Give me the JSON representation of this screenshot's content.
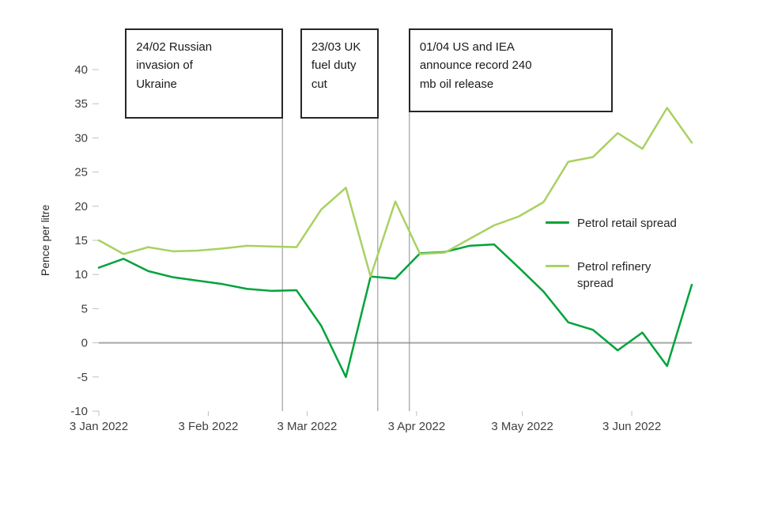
{
  "chart_data": {
    "type": "line",
    "title": "",
    "ylabel": "Pence per litre",
    "ylim": [
      -10,
      40
    ],
    "ytick_step": 5,
    "grid": "zero-line-only",
    "legend_position": "right-middle",
    "x_tick_labels": [
      "3 Jan 2022",
      "3 Feb 2022",
      "3 Mar 2022",
      "3 Apr 2022",
      "3 May 2022",
      "3 Jun 2022"
    ],
    "x_tick_weeks": [
      0,
      4.43,
      8.43,
      12.86,
      17.14,
      21.57
    ],
    "x_weeks": [
      0,
      1,
      2,
      3,
      4,
      5,
      6,
      7,
      8,
      9,
      10,
      11,
      12,
      13,
      14,
      15,
      16,
      17,
      18,
      19,
      20,
      21,
      22,
      23,
      24
    ],
    "x_dates": [
      "3 Jan",
      "10 Jan",
      "17 Jan",
      "24 Jan",
      "31 Jan",
      "7 Feb",
      "14 Feb",
      "21 Feb",
      "28 Feb",
      "7 Mar",
      "14 Mar",
      "21 Mar",
      "28 Mar",
      "4 Apr",
      "11 Apr",
      "18 Apr",
      "25 Apr",
      "2 May",
      "9 May",
      "16 May",
      "23 May",
      "30 May",
      "6 Jun",
      "13 Jun",
      "20 Jun"
    ],
    "series": [
      {
        "name": "Petrol retail spread",
        "color": "#00a33b",
        "values": [
          11,
          12.3,
          10.5,
          9.6,
          9.1,
          8.6,
          7.9,
          7.6,
          7.7,
          2.5,
          -5,
          9.7,
          9.4,
          13.1,
          13.3,
          14.2,
          14.4,
          11,
          7.5,
          3,
          1.9,
          -1.1,
          1.5,
          -3.4,
          8.5
        ]
      },
      {
        "name": "Petrol refinery spread",
        "color": "#a9d161",
        "values": [
          15,
          13,
          14,
          13.4,
          13.5,
          13.8,
          14.2,
          14.1,
          14,
          19.5,
          22.7,
          9.7,
          20.7,
          13,
          13.2,
          15.2,
          17.2,
          18.5,
          20.6,
          26.5,
          27.2,
          30.7,
          28.4,
          34.4,
          29.3
        ]
      }
    ],
    "annotations": [
      {
        "date": "24/02",
        "week": 7.43,
        "label": "24/02 Russian\ninvasion of\nUkraine"
      },
      {
        "date": "23/03",
        "week": 11.29,
        "label": "23/03 UK\nfuel duty\ncut"
      },
      {
        "date": "01/04",
        "week": 12.57,
        "label": "01/04 US and IEA\nannounce record 240\nmb oil release"
      }
    ],
    "colors": {
      "zero_line": "#a6a6a6",
      "event_line": "#8c8c8c",
      "tick": "#c0c0c0",
      "axis_text": "#404040"
    }
  }
}
